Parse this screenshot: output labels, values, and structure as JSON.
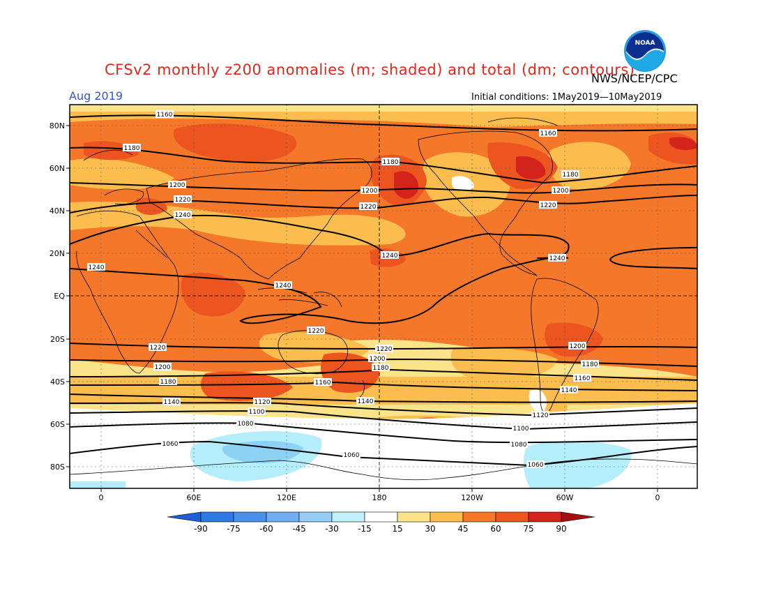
{
  "title": "CFSv2 monthly z200 anomalies (m; shaded) and total (dm; contours)",
  "agency": "NWS/NCEP/CPC",
  "month": "Aug 2019",
  "initial_conditions": "Initial conditions: 1May2019—10May2019",
  "logo_icon": "noaa-logo-icon",
  "logo_text": "NOAA",
  "map": {
    "lon_labels": [
      "0",
      "60E",
      "120E",
      "180",
      "120W",
      "60W",
      "0"
    ],
    "lat_labels": [
      "80N",
      "60N",
      "40N",
      "20N",
      "EQ",
      "20S",
      "40S",
      "60S",
      "80S"
    ],
    "colors": {
      "c15_30": "#fbe38a",
      "c30_45": "#fbbd4d",
      "c45_60": "#f4772a",
      "c60_75": "#ec5520",
      "c75_90": "#d4231b",
      "cm15_30": "#b4eefa",
      "cm30_45": "#8cd2f5",
      "land_outline": "#000000",
      "contour": "#000000"
    }
  },
  "contour_labels": [
    {
      "text": "1160"
    },
    {
      "text": "1160"
    },
    {
      "text": "1180"
    },
    {
      "text": "1180"
    },
    {
      "text": "1180"
    },
    {
      "text": "1200"
    },
    {
      "text": "1200"
    },
    {
      "text": "1200"
    },
    {
      "text": "1220"
    },
    {
      "text": "1220"
    },
    {
      "text": "1220"
    },
    {
      "text": "1240"
    },
    {
      "text": "1240"
    },
    {
      "text": "1240"
    },
    {
      "text": "1240"
    },
    {
      "text": "1240"
    },
    {
      "text": "1220"
    },
    {
      "text": "1220"
    },
    {
      "text": "1220"
    },
    {
      "text": "1200"
    },
    {
      "text": "1200"
    },
    {
      "text": "1200"
    },
    {
      "text": "1180"
    },
    {
      "text": "1180"
    },
    {
      "text": "1180"
    },
    {
      "text": "1160"
    },
    {
      "text": "1160"
    },
    {
      "text": "1140"
    },
    {
      "text": "1140"
    },
    {
      "text": "1140"
    },
    {
      "text": "1120"
    },
    {
      "text": "1120"
    },
    {
      "text": "1100"
    },
    {
      "text": "1100"
    },
    {
      "text": "1080"
    },
    {
      "text": "1080"
    },
    {
      "text": "1060"
    },
    {
      "text": "1060"
    },
    {
      "text": "1060"
    }
  ],
  "colorbar": {
    "labels": [
      "-90",
      "-75",
      "-60",
      "-45",
      "-30",
      "-15",
      "15",
      "30",
      "45",
      "60",
      "75",
      "90"
    ],
    "colors": [
      "#1e5fd6",
      "#2f79e2",
      "#4b91ea",
      "#6faef2",
      "#96cdf6",
      "#bff0fb",
      "#ffffff",
      "#fbe38a",
      "#fbbd4d",
      "#f4772a",
      "#ec5520",
      "#d4231b",
      "#a4100f"
    ]
  }
}
